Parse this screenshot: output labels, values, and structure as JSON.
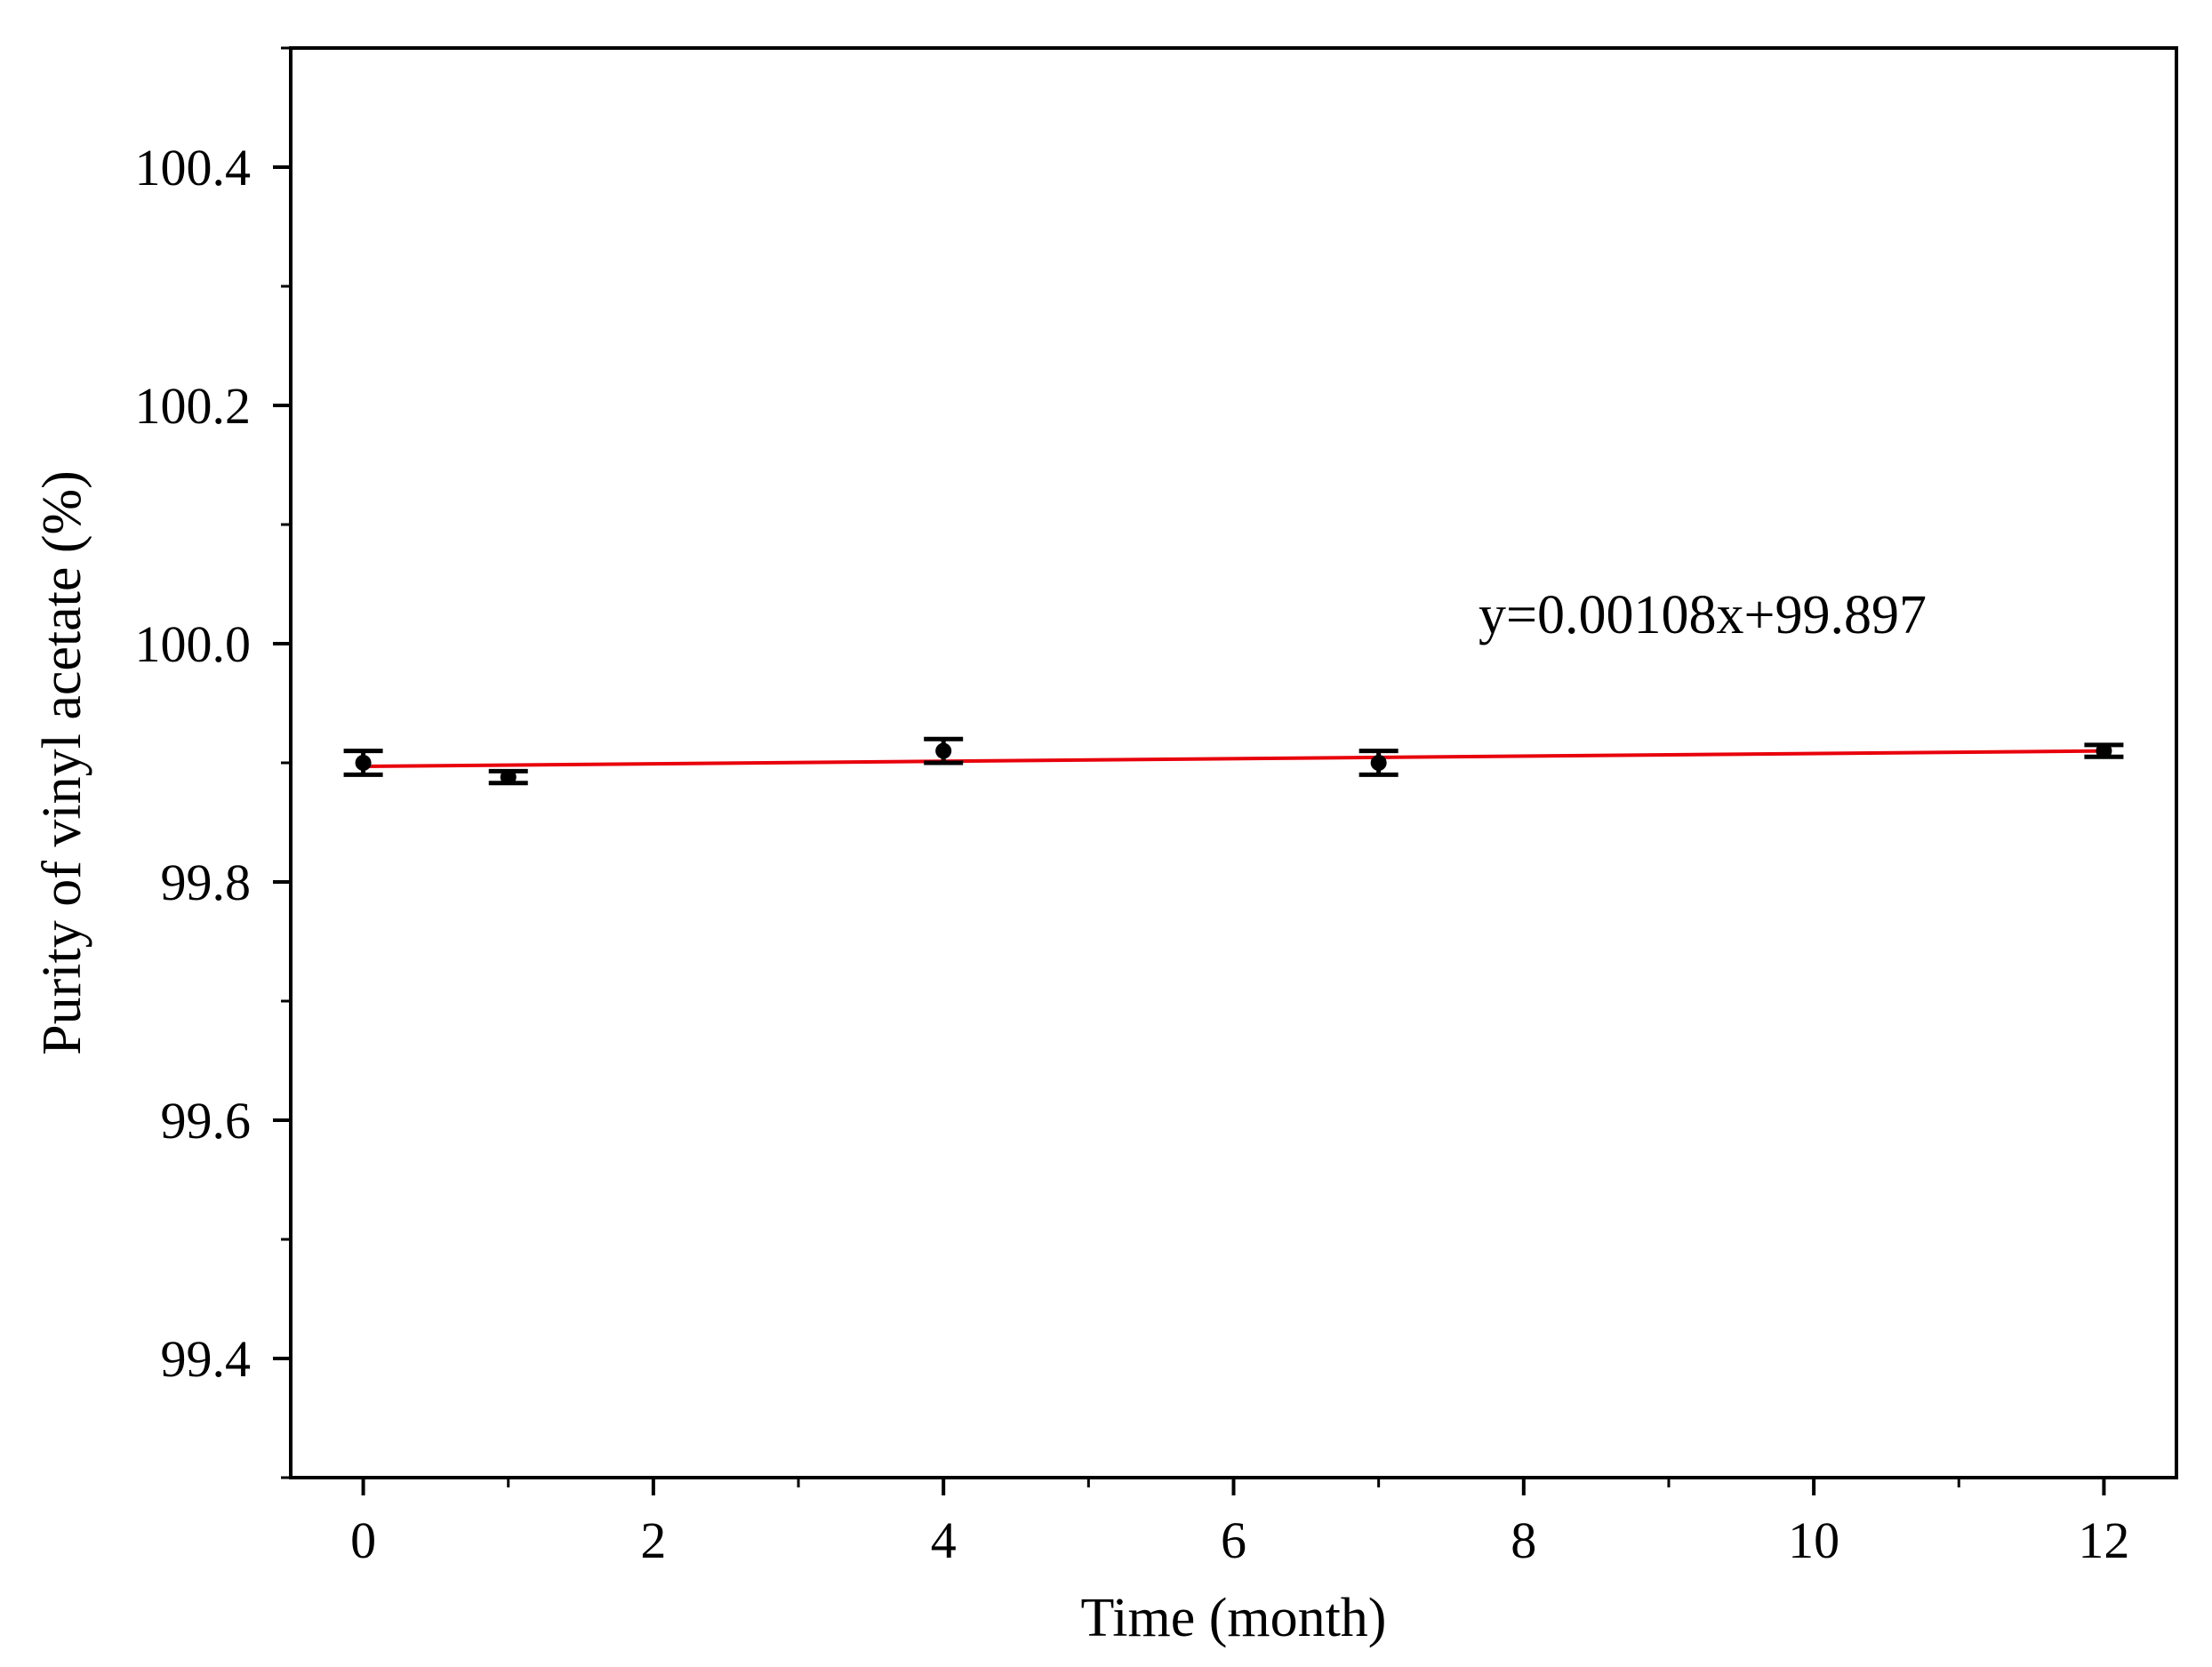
{
  "chart_data": {
    "type": "scatter",
    "xlabel": "Time (month)",
    "ylabel": "Purity of vinyl acetate (%)",
    "xlim": [
      -0.5,
      12.5
    ],
    "ylim": [
      99.3,
      100.5
    ],
    "x_ticks": [
      0,
      2,
      4,
      6,
      8,
      10,
      12
    ],
    "x_tick_labels": [
      "0",
      "2",
      "4",
      "6",
      "8",
      "10",
      "12"
    ],
    "y_ticks": [
      99.4,
      99.6,
      99.8,
      100.0,
      100.2,
      100.4
    ],
    "y_tick_labels": [
      "99.4",
      "99.6",
      "99.8",
      "100.0",
      "100.2",
      "100.4"
    ],
    "series": [
      {
        "x": [
          0,
          1,
          4,
          7,
          12
        ],
        "y": [
          99.9,
          99.888,
          99.91,
          99.9,
          99.91
        ],
        "error": [
          0.01,
          0.005,
          0.01,
          0.01,
          0.005
        ],
        "color": "#000000"
      }
    ],
    "fit_line": {
      "slope": 0.00108,
      "intercept": 99.897,
      "x_range": [
        0,
        12
      ],
      "color": "#e8000b"
    },
    "annotation": "y=0.00108x+99.897",
    "grid": false
  }
}
